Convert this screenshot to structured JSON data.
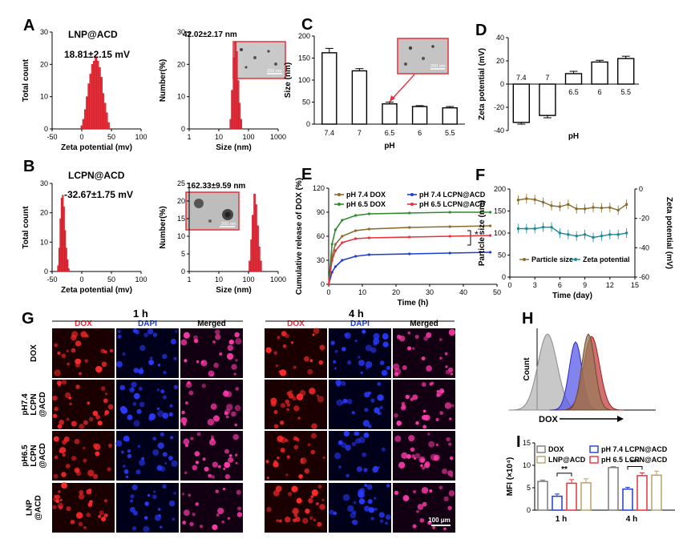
{
  "panels": {
    "A": "A",
    "B": "B",
    "C": "C",
    "D": "D",
    "E": "E",
    "F": "F",
    "G": "G",
    "H": "H",
    "I": "I"
  },
  "colors": {
    "red": "#e8303a",
    "green": "#2e8b2e",
    "brown": "#8b6a2b",
    "blue": "#1f3fcf",
    "teal": "#1a8a96",
    "orange": "#c8741e",
    "grey": "#9a9a9a",
    "mbrown": "#7a4a2a"
  },
  "a": {
    "title": "LNP@ACD",
    "zeta": "18.81±2.15 mV",
    "size_label": "42.02±2.17 nm",
    "scale": "200 nm"
  },
  "b": {
    "title": "LCPN@ACD",
    "zeta": "-32.67±1.75 mV",
    "size_label": "162.33±9.59 nm",
    "scale": "200 nm"
  },
  "c": {
    "scale": "200 nm"
  },
  "d": {},
  "e": {
    "sig": "*"
  },
  "g": {
    "t1": "1 h",
    "t2": "4 h",
    "cols": [
      "DOX",
      "DAPI",
      "Merged"
    ],
    "rows": [
      "DOX",
      "pH7.4\nLCPN\n@ACD",
      "pH6.5\nLCPN\n@ACD",
      "LNP\n@ACD"
    ],
    "row_labels": [
      [
        "DOX"
      ],
      [
        "pH7.4",
        "LCPN",
        "@ACD"
      ],
      [
        "pH6.5",
        "LCPN",
        "@ACD"
      ],
      [
        "LNP",
        "@ACD"
      ]
    ],
    "scale": "100 μm"
  },
  "h": {
    "ylabel": "Count",
    "xlabel": "DOX"
  },
  "chart_data": [
    {
      "id": "A-left",
      "type": "bar",
      "title": "",
      "xlabel": "Zeta potential (mv)",
      "ylabel": "Total count",
      "xlim": [
        -50,
        100
      ],
      "ylim": [
        0,
        30
      ],
      "xticks": [
        "-50",
        "0",
        "50",
        "100"
      ],
      "yticks": [
        "0",
        "10",
        "20",
        "30"
      ],
      "x": [
        0,
        3,
        6,
        9,
        12,
        15,
        18,
        21,
        24,
        27,
        30,
        33,
        36,
        39,
        42,
        45
      ],
      "values": [
        1,
        3,
        6,
        10,
        14,
        17,
        20,
        21,
        22,
        21,
        19,
        16,
        11,
        8,
        5,
        2
      ]
    },
    {
      "id": "A-right",
      "type": "bar",
      "xlabel": "Size (nm)",
      "ylabel": "Number(%)",
      "xscale": "log",
      "xlim": [
        1,
        1000
      ],
      "ylim": [
        0,
        30
      ],
      "xticks": [
        "1",
        "10",
        "100",
        "1000"
      ],
      "yticks": [
        "0",
        "10",
        "20",
        "30"
      ],
      "x": [
        25,
        28,
        32,
        36,
        40,
        45,
        50,
        56
      ],
      "values": [
        3,
        12,
        22,
        27,
        24,
        15,
        8,
        3
      ]
    },
    {
      "id": "B-left",
      "type": "bar",
      "xlabel": "Zeta potential (mv)",
      "ylabel": "Total count",
      "xlim": [
        -50,
        100
      ],
      "ylim": [
        0,
        30
      ],
      "xticks": [
        "-50",
        "0",
        "50",
        "100"
      ],
      "yticks": [
        "0",
        "10",
        "20",
        "30"
      ],
      "x": [
        -40,
        -38,
        -36,
        -34,
        -32,
        -30,
        -28,
        -26,
        -24,
        -22
      ],
      "values": [
        2,
        8,
        18,
        25,
        26,
        22,
        14,
        8,
        4,
        1
      ]
    },
    {
      "id": "B-right",
      "type": "bar",
      "xlabel": "Size (nm)",
      "ylabel": "Number(%)",
      "xscale": "log",
      "xlim": [
        1,
        1000
      ],
      "ylim": [
        0,
        25
      ],
      "xticks": [
        "1",
        "10",
        "100",
        "1000"
      ],
      "yticks": [
        "0",
        "5",
        "10",
        "15",
        "20",
        "25"
      ],
      "x": [
        110,
        125,
        140,
        160,
        180,
        205,
        230,
        260
      ],
      "values": [
        3,
        9,
        16,
        22,
        19,
        13,
        7,
        3
      ]
    },
    {
      "id": "C",
      "type": "bar",
      "xlabel": "pH",
      "ylabel": "Size (nm)",
      "ylim": [
        0,
        200
      ],
      "categories": [
        "7.4",
        "7",
        "6.5",
        "6",
        "5.5"
      ],
      "values": [
        162,
        121,
        46,
        40,
        37
      ],
      "errors": [
        10,
        5,
        4,
        2,
        3
      ],
      "yticks": [
        "0",
        "50",
        "100",
        "150",
        "200"
      ]
    },
    {
      "id": "D",
      "type": "bar",
      "xlabel": "pH",
      "ylabel": "Zeta potential (mV)",
      "ylim": [
        -40,
        40
      ],
      "categories": [
        "7.4",
        "7",
        "6.5",
        "6",
        "5.5"
      ],
      "values": [
        -33,
        -27,
        9,
        19,
        22
      ],
      "errors": [
        1.5,
        2,
        2,
        1.5,
        2
      ],
      "yticks": [
        "-40",
        "-20",
        "0",
        "20",
        "40"
      ]
    },
    {
      "id": "E",
      "type": "line",
      "xlabel": "Time (h)",
      "ylabel": "Cumulative release of DOX (%)",
      "xlim": [
        0,
        50
      ],
      "ylim": [
        0,
        120
      ],
      "xticks": [
        "0",
        "10",
        "20",
        "30",
        "40",
        "50"
      ],
      "yticks": [
        "0",
        "30",
        "60",
        "90",
        "120"
      ],
      "x": [
        0,
        1,
        2,
        4,
        8,
        12,
        24,
        36,
        48
      ],
      "series": [
        {
          "name": "pH 7.4 DOX",
          "color": "#8b6a2b",
          "values": [
            0,
            35,
            50,
            60,
            67,
            69,
            71,
            72,
            73
          ]
        },
        {
          "name": "pH 6.5 DOX",
          "color": "#2e8b2e",
          "values": [
            0,
            50,
            68,
            80,
            86,
            88,
            89,
            90,
            90
          ]
        },
        {
          "name": "pH 7.4 LCPN@ACD",
          "color": "#1f3fcf",
          "values": [
            0,
            15,
            22,
            30,
            35,
            37,
            38,
            39,
            40
          ]
        },
        {
          "name": "pH 6.5 LCPN@ACD",
          "color": "#e8303a",
          "values": [
            0,
            30,
            42,
            52,
            57,
            58,
            59,
            60,
            61
          ]
        }
      ]
    },
    {
      "id": "F",
      "type": "line",
      "xlabel": "Time (day)",
      "ylabel": "Particle size (nm)",
      "y2label": "Zeta potential (mV)",
      "xlim": [
        0,
        15
      ],
      "ylim": [
        0,
        200
      ],
      "y2lim": [
        -60,
        0
      ],
      "xticks": [
        "0",
        "3",
        "6",
        "9",
        "12",
        "15"
      ],
      "yticks": [
        "0",
        "50",
        "100",
        "150",
        "200"
      ],
      "y2ticks": [
        "-60",
        "-40",
        "-20",
        "0"
      ],
      "x": [
        1,
        2,
        3,
        4,
        5,
        6,
        7,
        8,
        9,
        10,
        11,
        12,
        13,
        14
      ],
      "series": [
        {
          "name": "Particle size",
          "color": "#8b6a2b",
          "axis": "left",
          "values": [
            175,
            178,
            176,
            170,
            162,
            160,
            165,
            155,
            155,
            158,
            157,
            158,
            152,
            165
          ]
        },
        {
          "name": "Zeta potential",
          "color": "#1a8a96",
          "axis": "right",
          "values": [
            -27,
            -27,
            -27,
            -26,
            -26,
            -30,
            -31,
            -32,
            -31,
            -33,
            -32,
            -31,
            -31,
            -30
          ]
        }
      ]
    },
    {
      "id": "I",
      "type": "bar",
      "xlabel": "",
      "ylabel": "MFI (×10⁴)",
      "ylim": [
        0,
        15
      ],
      "categories": [
        "1 h",
        "4 h"
      ],
      "yticks": [
        "0",
        "5",
        "10",
        "15"
      ],
      "sig": [
        "**",
        "***"
      ],
      "series": [
        {
          "name": "DOX",
          "color": "#7a7a7a",
          "values": [
            6.4,
            9.5
          ],
          "errors": [
            0.3,
            0.2
          ]
        },
        {
          "name": "pH 7.4 LCPN@ACD",
          "color": "#1f3fcf",
          "values": [
            3.1,
            4.7
          ],
          "errors": [
            0.5,
            0.4
          ]
        },
        {
          "name": "pH 6.5 LCPN@ACD",
          "color": "#e8303a",
          "values": [
            6.0,
            7.7
          ],
          "errors": [
            0.8,
            0.6
          ]
        },
        {
          "name": "LNP@ACD",
          "color": "#b8a36a",
          "values": [
            6.1,
            7.8
          ],
          "errors": [
            0.9,
            0.9
          ]
        }
      ]
    }
  ]
}
